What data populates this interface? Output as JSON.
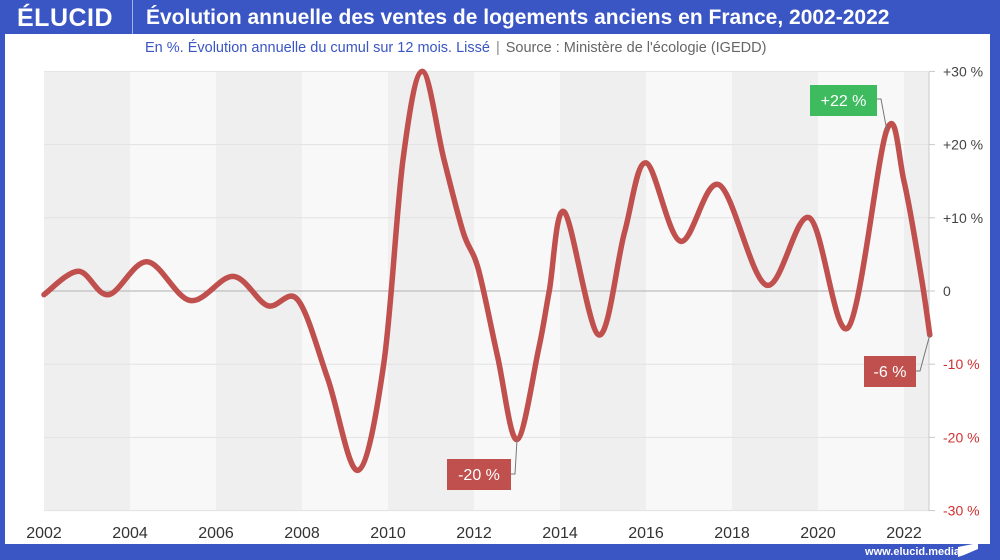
{
  "header": {
    "logo": "ÉLUCID",
    "title": "Évolution annuelle des ventes de logements anciens en France, 2002-2022"
  },
  "subtitle": {
    "text": "En %. Évolution annuelle du cumul sur 12 mois. Lissé",
    "separator": "|",
    "source": "Source : Ministère de l'écologie (IGEDD)"
  },
  "footer": {
    "url": "www.elucid.media",
    "flag_icon": "elucid-flag-icon"
  },
  "colors": {
    "brand": "#3a55c4",
    "line": "#c0504d",
    "positive_label": "#3dbb5e",
    "negative_label": "#c0504d",
    "negative_axis": "#d03030",
    "positive_axis": "#444444",
    "band_dark": "#efefef",
    "band_light": "#f8f8f8"
  },
  "chart_data": {
    "type": "line",
    "title": "Évolution annuelle des ventes de logements anciens en France, 2002-2022",
    "subtitle": "En %. Évolution annuelle du cumul sur 12 mois. Lissé",
    "xlabel": "",
    "ylabel": "",
    "xlim": [
      2002,
      2022.65
    ],
    "ylim": [
      -30,
      30
    ],
    "x_ticks": [
      2002,
      2004,
      2006,
      2008,
      2010,
      2012,
      2014,
      2016,
      2018,
      2020,
      2022
    ],
    "x_tick_labels": [
      "2002",
      "2004",
      "2006",
      "2008",
      "2010",
      "2012",
      "2014",
      "2016",
      "2018",
      "2020",
      "2022"
    ],
    "y_ticks": [
      30,
      20,
      10,
      0,
      -10,
      -20,
      -30
    ],
    "y_tick_labels": [
      "+30 %",
      "+20 %",
      "+10 %",
      "0",
      "-10 %",
      "-20 %",
      "-30 %"
    ],
    "y_axis_side": "right",
    "grid": true,
    "alternating_bands_years": 2,
    "series": [
      {
        "name": "Évolution annuelle des ventes",
        "x": [
          2002.0,
          2002.8,
          2003.5,
          2004.4,
          2005.4,
          2006.4,
          2007.2,
          2007.9,
          2008.6,
          2009.3,
          2009.9,
          2010.35,
          2010.8,
          2011.3,
          2011.75,
          2012.1,
          2012.55,
          2013.0,
          2013.5,
          2013.75,
          2014.1,
          2014.9,
          2015.5,
          2016.0,
          2016.8,
          2017.7,
          2018.8,
          2019.8,
          2020.7,
          2021.6,
          2022.0,
          2022.4,
          2022.6
        ],
        "values": [
          -0.5,
          2.7,
          -0.5,
          4.0,
          -1.3,
          2.0,
          -2.0,
          -1.2,
          -12.0,
          -24.5,
          -10.0,
          18.0,
          30.0,
          18.0,
          8.0,
          3.0,
          -9.0,
          -20.3,
          -8.0,
          0.0,
          10.8,
          -6.0,
          8.0,
          17.5,
          6.8,
          14.5,
          0.8,
          10.0,
          -5.0,
          22.0,
          15.0,
          2.0,
          -6.0
        ]
      }
    ],
    "annotations": [
      {
        "label": "-20 %",
        "x": 2013.0,
        "y": -20.3,
        "color": "negative"
      },
      {
        "label": "+22 %",
        "x": 2021.6,
        "y": 22.0,
        "color": "positive"
      },
      {
        "label": "-6 %",
        "x": 2022.6,
        "y": -6.0,
        "color": "negative"
      }
    ]
  }
}
